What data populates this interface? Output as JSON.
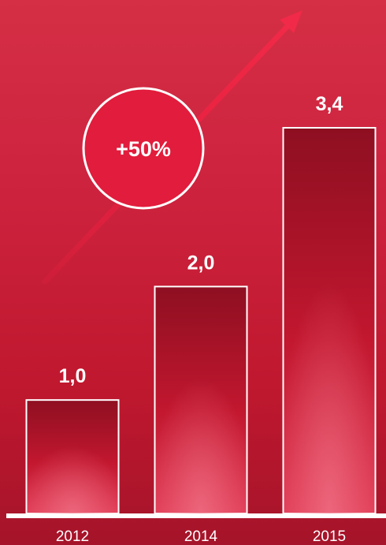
{
  "chart_data": {
    "type": "bar",
    "categories": [
      "2012",
      "2014",
      "2015"
    ],
    "values": [
      1.0,
      2.0,
      3.4
    ],
    "value_labels": [
      "1,0",
      "2,0",
      "3,4"
    ],
    "ylim": [
      0,
      3.4
    ],
    "title": "",
    "xlabel": "",
    "ylabel": "",
    "grid": false,
    "annotation": "+50%"
  },
  "colors": {
    "background": "#c81e38",
    "bar_top": "#8e0f21",
    "bar_bottom": "#e84c64",
    "badge_fill": "#e21c3c",
    "outline": "#ffffff"
  }
}
